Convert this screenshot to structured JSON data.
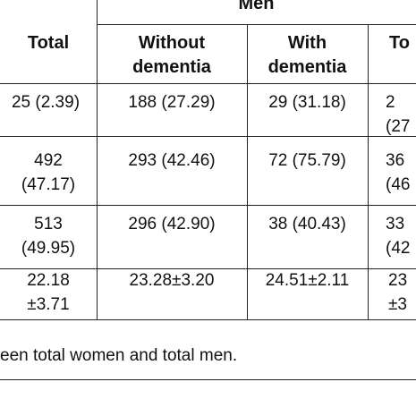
{
  "table": {
    "group_header": "Men",
    "headers": [
      "Total",
      "Without\ndementia",
      "With\ndementia",
      "To"
    ],
    "rows": [
      [
        "25 (2.39)",
        "188 (27.29)",
        "29 (31.18)",
        "2\n(27"
      ],
      [
        "492\n(47.17)",
        "293 (42.46)",
        "72 (75.79)",
        "36\n(46"
      ],
      [
        "513\n(49.95)",
        "296 (42.90)",
        "38 (40.43)",
        "33\n(42"
      ],
      [
        "22.18\n±3.71",
        "23.28±3.20",
        "24.51±2.11",
        "23\n±3"
      ]
    ]
  },
  "footnote": "een total women and total men."
}
